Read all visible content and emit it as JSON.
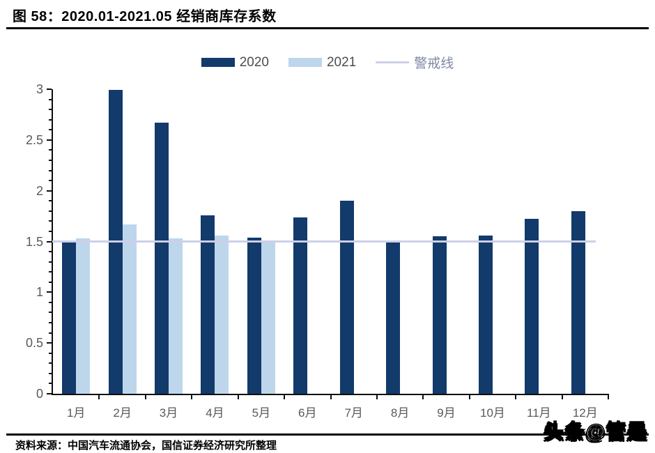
{
  "header": {
    "title": "图 58：2020.01-2021.05 经销商库存系数"
  },
  "legend": {
    "items": [
      {
        "label": "2020",
        "type": "bar",
        "color": "#123A6B"
      },
      {
        "label": "2021",
        "type": "bar",
        "color": "#BDD6EC"
      },
      {
        "label": "警戒线",
        "type": "line",
        "color": "#CCD0E8"
      }
    ]
  },
  "footer": {
    "source": "资料来源：中国汽车流通协会，国信证券经济研究所整理",
    "watermark": "头条@管是"
  },
  "colors": {
    "series_2020": "#123A6B",
    "series_2021": "#BDD6EC",
    "warning_line": "#CCD0E8",
    "axis": "#0d0d0d",
    "tick_label": "#595959"
  },
  "chart_data": {
    "type": "bar",
    "title": "2020.01-2021.05 经销商库存系数",
    "categories": [
      "1月",
      "2月",
      "3月",
      "4月",
      "5月",
      "6月",
      "7月",
      "8月",
      "9月",
      "10月",
      "11月",
      "12月"
    ],
    "series": [
      {
        "name": "2020",
        "color": "#123A6B",
        "values": [
          1.49,
          2.99,
          2.67,
          1.76,
          1.54,
          1.74,
          1.9,
          1.49,
          1.55,
          1.56,
          1.72,
          1.8
        ]
      },
      {
        "name": "2021",
        "color": "#BDD6EC",
        "values": [
          1.53,
          1.67,
          1.53,
          1.56,
          1.5,
          null,
          null,
          null,
          null,
          null,
          null,
          null
        ]
      }
    ],
    "reference_line": {
      "name": "警戒线",
      "value": 1.5,
      "color": "#CCD0E8"
    },
    "xlabel": "",
    "ylabel": "",
    "ylim": [
      0,
      3
    ],
    "y_ticks": [
      0,
      0.5,
      1,
      1.5,
      2,
      2.5,
      3
    ],
    "y_minor_step": 0.1,
    "grid": false,
    "legend_position": "top-center"
  }
}
